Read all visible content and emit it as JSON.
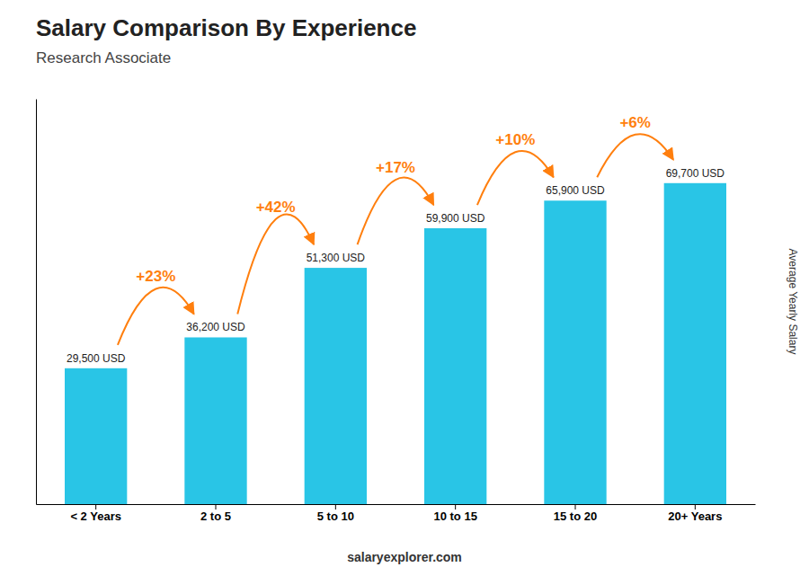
{
  "chart_data": {
    "type": "bar",
    "title": "Salary Comparison By Experience",
    "subtitle": "Research Associate",
    "y_label": "Average Yearly Salary",
    "categories": [
      "< 2 Years",
      "2 to 5",
      "5 to 10",
      "10 to 15",
      "15 to 20",
      "20+ Years"
    ],
    "values": [
      29500,
      36200,
      51300,
      59900,
      65900,
      69700
    ],
    "value_labels": [
      "29,500 USD",
      "36,200 USD",
      "51,300 USD",
      "59,900 USD",
      "65,900 USD",
      "69,700 USD"
    ],
    "data_labels": true,
    "annotations": [
      "+23%",
      "+42%",
      "+17%",
      "+10%",
      "+6%"
    ],
    "footer": [
      "salary",
      "explorer.com"
    ],
    "color": "#29C5E6",
    "ylim": [
      0,
      88000
    ],
    "tick_labels": "x",
    "grid": false
  }
}
